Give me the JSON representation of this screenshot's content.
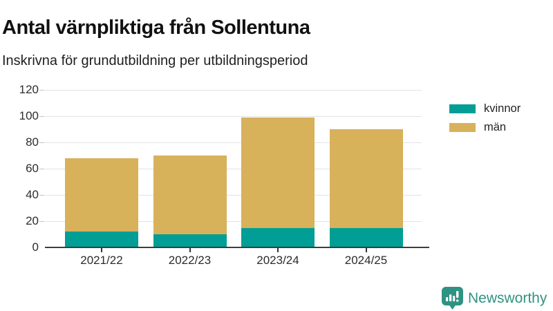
{
  "header": {
    "title": "Antal värnpliktiga från Sollentuna",
    "subtitle": "Inskrivna för grundutbildning per utbildningsperiod"
  },
  "chart_data": {
    "type": "bar",
    "stacked": true,
    "title": "Antal värnpliktiga från Sollentuna",
    "subtitle": "Inskrivna för grundutbildning per utbildningsperiod",
    "categories": [
      "2021/22",
      "2022/23",
      "2023/24",
      "2024/25"
    ],
    "series": [
      {
        "name": "kvinnor",
        "color": "#009e94",
        "values": [
          12,
          10,
          15,
          15
        ]
      },
      {
        "name": "män",
        "color": "#d8b15b",
        "values": [
          56,
          60,
          84,
          75
        ]
      }
    ],
    "totals": [
      68,
      70,
      99,
      90
    ],
    "xlabel": "",
    "ylabel": "",
    "ylim": [
      0,
      120
    ],
    "yticks": [
      0,
      20,
      40,
      60,
      80,
      100,
      120
    ],
    "grid": true,
    "legend_position": "right"
  },
  "colors": {
    "kvinnor": "#009e94",
    "man": "#d8b15b",
    "gridline": "#e2e2e2",
    "axis": "#3d3d3d",
    "brand_teal": "#2f9383"
  },
  "branding": {
    "name": "Newsworthy",
    "logo_icon": "bar-chart-speech-bubble-icon"
  }
}
